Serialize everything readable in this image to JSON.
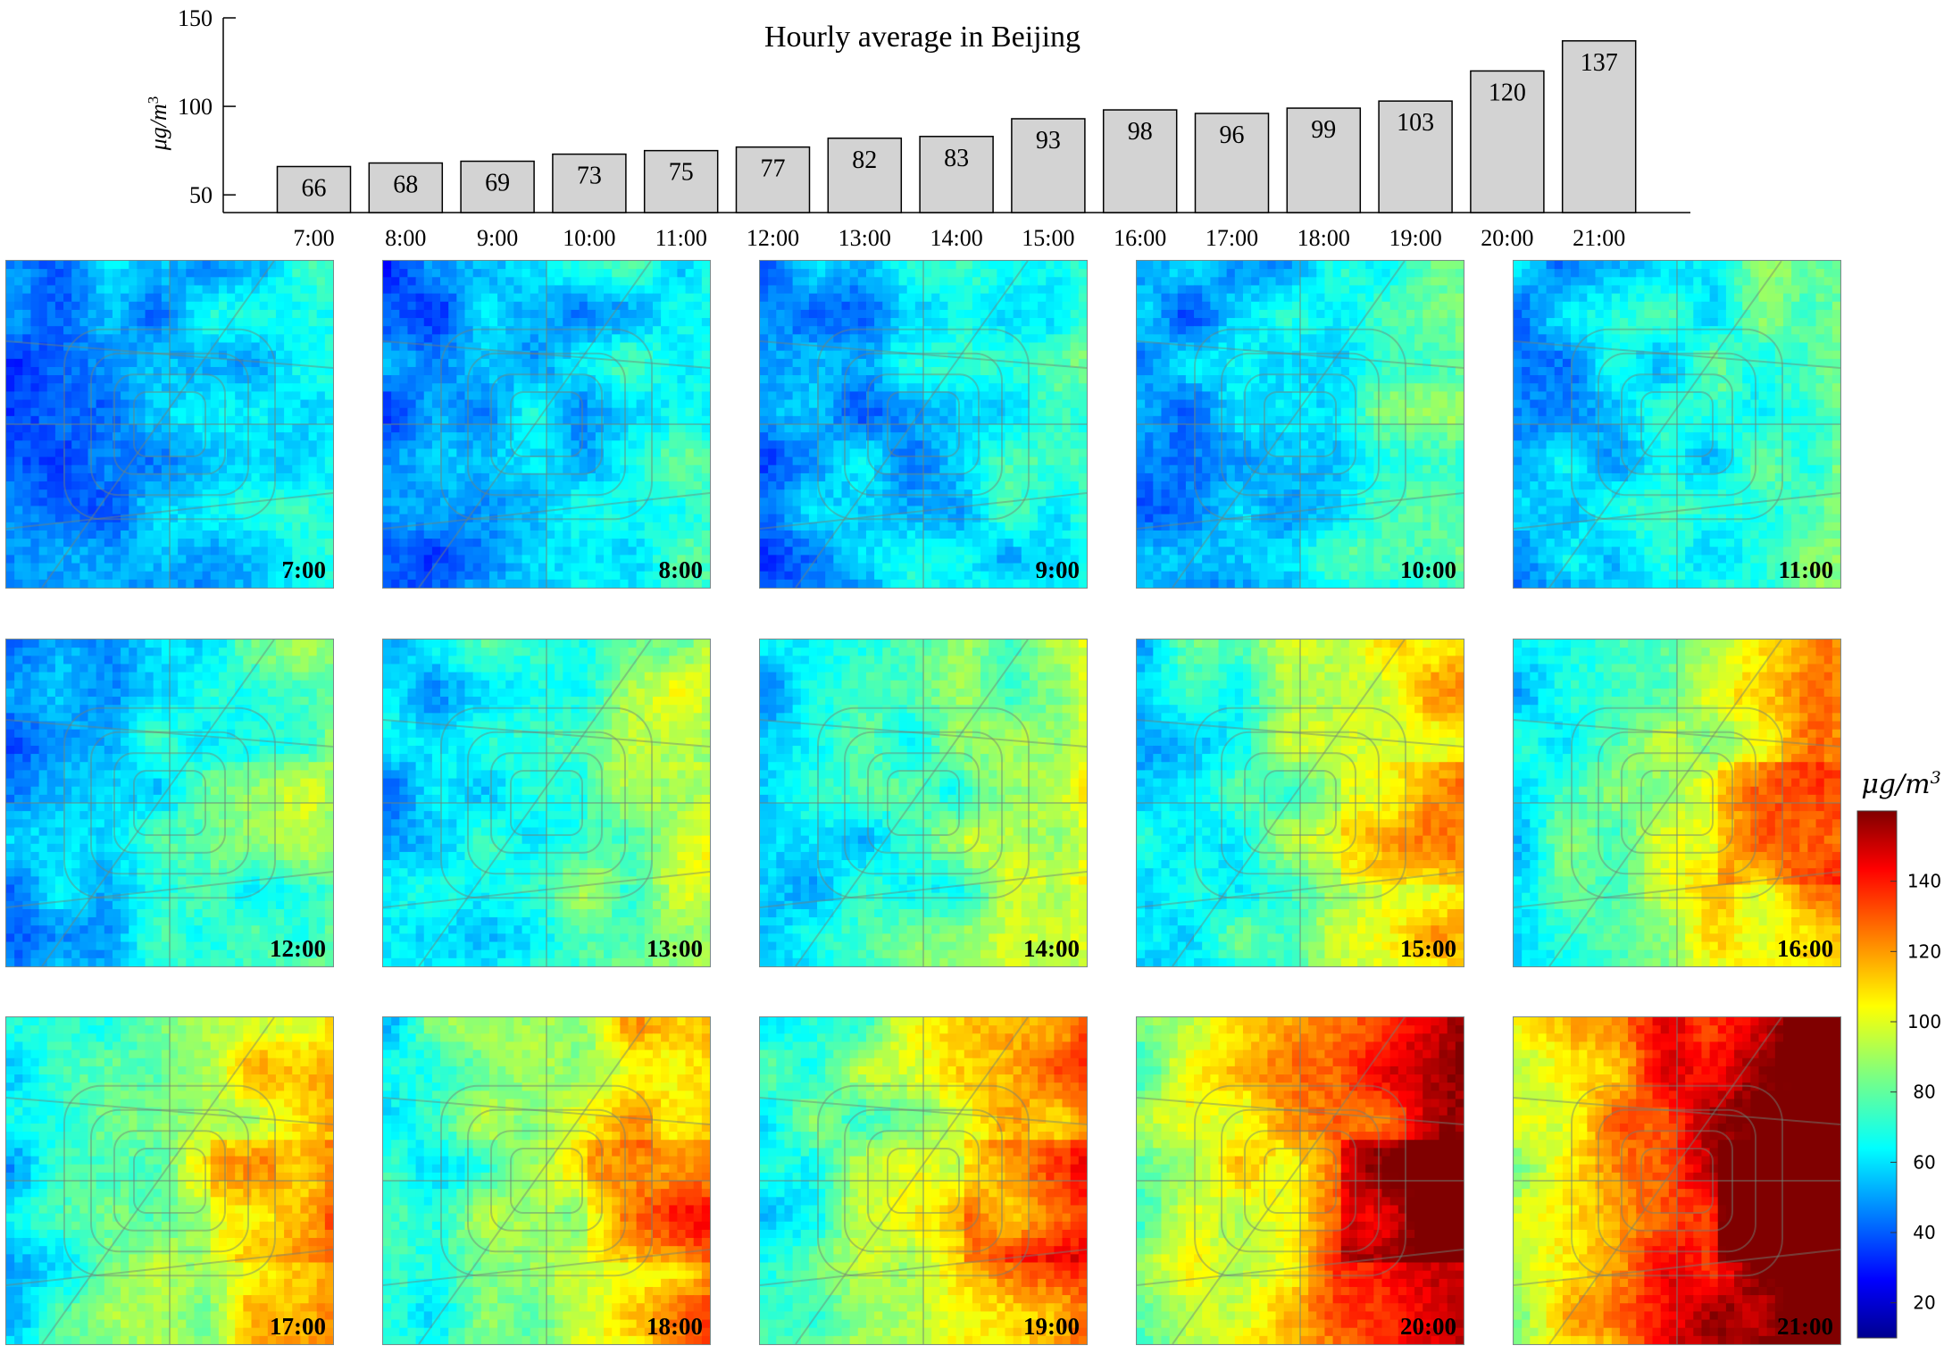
{
  "chart_data": [
    {
      "type": "bar",
      "title": "Hourly average in Beijing",
      "ylabel": "μg/m",
      "ylabel_sup": "3",
      "ylim": [
        40,
        150
      ],
      "yticks": [
        "50",
        "100",
        "150"
      ],
      "categories": [
        "7:00",
        "8:00",
        "9:00",
        "10:00",
        "11:00",
        "12:00",
        "13:00",
        "14:00",
        "15:00",
        "16:00",
        "17:00",
        "18:00",
        "19:00",
        "20:00",
        "21:00"
      ],
      "values": [
        66,
        68,
        69,
        73,
        75,
        77,
        82,
        83,
        93,
        98,
        96,
        99,
        103,
        120,
        137
      ],
      "bar_color": "#d3d3d3",
      "data_labels": true
    },
    {
      "type": "heatmap",
      "panels": [
        "7:00",
        "8:00",
        "9:00",
        "10:00",
        "11:00",
        "12:00",
        "13:00",
        "14:00",
        "15:00",
        "16:00",
        "17:00",
        "18:00",
        "19:00",
        "20:00",
        "21:00"
      ],
      "colormap": "jet",
      "colorbar_label": "μg/m",
      "colorbar_label_sup": "3",
      "colorbar_range": [
        10,
        160
      ],
      "colorbar_ticks": [
        "20",
        "40",
        "60",
        "80",
        "100",
        "120",
        "140"
      ]
    }
  ]
}
